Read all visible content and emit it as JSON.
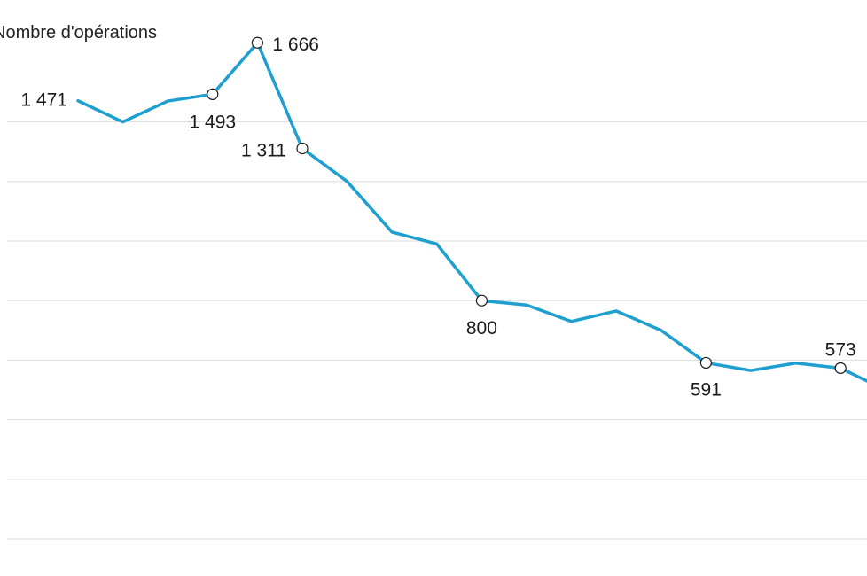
{
  "title": "Nombre d'opérations",
  "chart_data": {
    "type": "line",
    "title": "Nombre d'opérations",
    "xlabel": "",
    "ylabel": "",
    "ylim": [
      0,
      2000
    ],
    "grid": true,
    "color": "#1f9fcf",
    "points": [
      {
        "value": 1471,
        "label": "1 471"
      },
      {
        "value": 1400
      },
      {
        "value": 1470
      },
      {
        "value": 1493,
        "label": "1 493"
      },
      {
        "value": 1666,
        "label": "1 666"
      },
      {
        "value": 1311,
        "label": "1 311"
      },
      {
        "value": 1200
      },
      {
        "value": 1030
      },
      {
        "value": 990
      },
      {
        "value": 800,
        "label": "800"
      },
      {
        "value": 785
      },
      {
        "value": 730
      },
      {
        "value": 765
      },
      {
        "value": 700
      },
      {
        "value": 591,
        "label": "591"
      },
      {
        "value": 565
      },
      {
        "value": 590
      },
      {
        "value": 573,
        "label": "573"
      },
      {
        "value": 500
      }
    ]
  }
}
